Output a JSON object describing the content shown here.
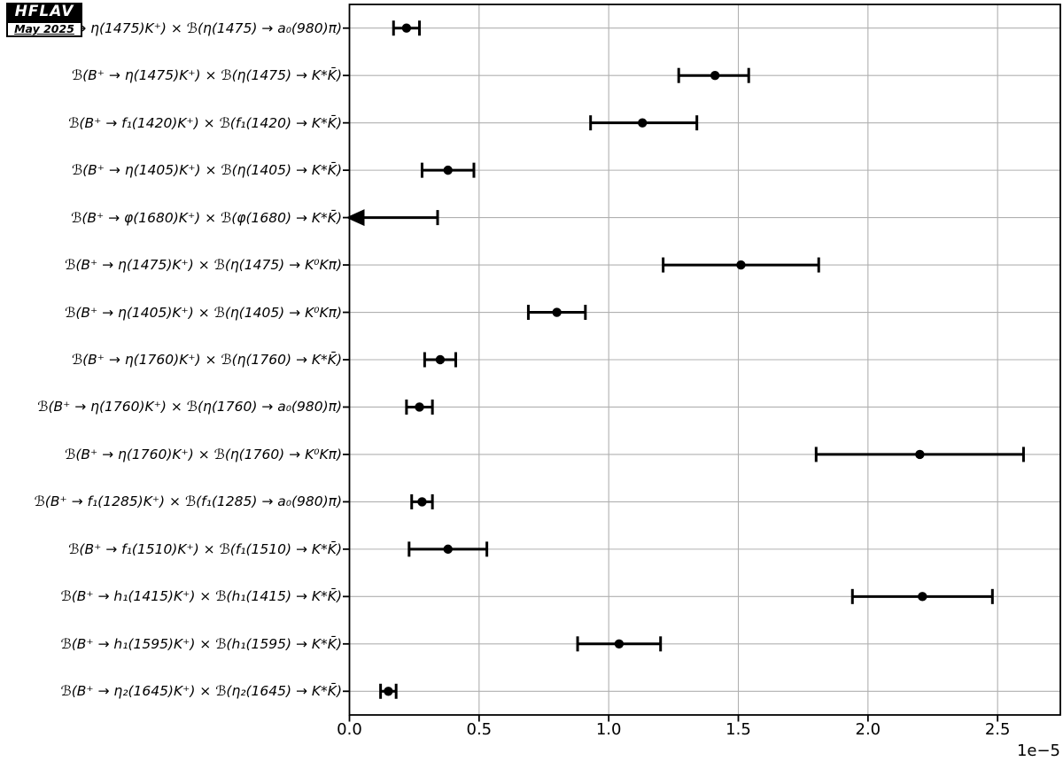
{
  "logo": {
    "title": "HFLAV",
    "date": "May 2025"
  },
  "chart_data": {
    "type": "scatter",
    "subtype": "horizontal-error-bars",
    "title": "",
    "xlabel": "",
    "ylabel": "",
    "axis_offset_label": "1e−5",
    "unit": "1e-5",
    "xlim": [
      0,
      2.742
    ],
    "xticks": [
      0,
      0.5,
      1.0,
      1.5,
      2.0,
      2.5
    ],
    "xtick_labels": [
      "0.0",
      "0.5",
      "1.0",
      "1.5",
      "2.0",
      "2.5"
    ],
    "grid": true,
    "grid_color": "#b0b0b0",
    "marker_color": "#000000",
    "rows": [
      {
        "label": "ℬ(B⁺ → η(1475)K⁺) × ℬ(η(1475) → a₀(980)π)",
        "value": 0.22,
        "err_minus": 0.05,
        "err_plus": 0.05,
        "upper_limit": false
      },
      {
        "label": "ℬ(B⁺ → η(1475)K⁺) × ℬ(η(1475) → K*K̄)",
        "value": 1.41,
        "err_minus": 0.14,
        "err_plus": 0.13,
        "upper_limit": false
      },
      {
        "label": "ℬ(B⁺ → f₁(1420)K⁺) × ℬ(f₁(1420) → K*K̄)",
        "value": 1.13,
        "err_minus": 0.2,
        "err_plus": 0.21,
        "upper_limit": false
      },
      {
        "label": "ℬ(B⁺ → η(1405)K⁺) × ℬ(η(1405) → K*K̄)",
        "value": 0.38,
        "err_minus": 0.1,
        "err_plus": 0.1,
        "upper_limit": false
      },
      {
        "label": "ℬ(B⁺ → φ(1680)K⁺) × ℬ(φ(1680) → K*K̄)",
        "value": 0.34,
        "err_minus": 0,
        "err_plus": 0,
        "upper_limit": true
      },
      {
        "label": "ℬ(B⁺ → η(1475)K⁺) × ℬ(η(1475) → K⁰Kπ)",
        "value": 1.51,
        "err_minus": 0.3,
        "err_plus": 0.3,
        "upper_limit": false
      },
      {
        "label": "ℬ(B⁺ → η(1405)K⁺) × ℬ(η(1405) → K⁰Kπ)",
        "value": 0.8,
        "err_minus": 0.11,
        "err_plus": 0.11,
        "upper_limit": false
      },
      {
        "label": "ℬ(B⁺ → η(1760)K⁺) × ℬ(η(1760) → K*K̄)",
        "value": 0.35,
        "err_minus": 0.06,
        "err_plus": 0.06,
        "upper_limit": false
      },
      {
        "label": "ℬ(B⁺ → η(1760)K⁺) × ℬ(η(1760) → a₀(980)π)",
        "value": 0.27,
        "err_minus": 0.05,
        "err_plus": 0.05,
        "upper_limit": false
      },
      {
        "label": "ℬ(B⁺ → η(1760)K⁺) × ℬ(η(1760) → K⁰Kπ)",
        "value": 2.2,
        "err_minus": 0.4,
        "err_plus": 0.4,
        "upper_limit": false
      },
      {
        "label": "ℬ(B⁺ → f₁(1285)K⁺) × ℬ(f₁(1285) → a₀(980)π)",
        "value": 0.28,
        "err_minus": 0.04,
        "err_plus": 0.04,
        "upper_limit": false
      },
      {
        "label": "ℬ(B⁺ → f₁(1510)K⁺) × ℬ(f₁(1510) → K*K̄)",
        "value": 0.38,
        "err_minus": 0.15,
        "err_plus": 0.15,
        "upper_limit": false
      },
      {
        "label": "ℬ(B⁺ → h₁(1415)K⁺) × ℬ(h₁(1415) → K*K̄)",
        "value": 2.21,
        "err_minus": 0.27,
        "err_plus": 0.27,
        "upper_limit": false
      },
      {
        "label": "ℬ(B⁺ → h₁(1595)K⁺) × ℬ(h₁(1595) → K*K̄)",
        "value": 1.04,
        "err_minus": 0.16,
        "err_plus": 0.16,
        "upper_limit": false
      },
      {
        "label": "ℬ(B⁺ → η₂(1645)K⁺) × ℬ(η₂(1645) → K*K̄)",
        "value": 0.15,
        "err_minus": 0.03,
        "err_plus": 0.03,
        "upper_limit": false
      }
    ]
  }
}
